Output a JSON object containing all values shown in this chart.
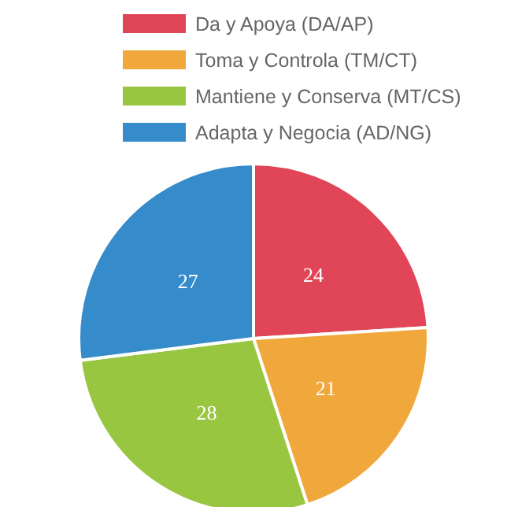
{
  "chart_data": {
    "type": "pie",
    "categories": [
      "Da y Apoya (DA/AP)",
      "Toma y Controla (TM/CT)",
      "Mantiene y Conserva (MT/CS)",
      "Adapta y Negocia (AD/NG)"
    ],
    "values": [
      24,
      21,
      28,
      27
    ],
    "colors": [
      "#e04657",
      "#f0a83c",
      "#99c640",
      "#368ccb"
    ],
    "data_labels": true,
    "legend": "top"
  }
}
